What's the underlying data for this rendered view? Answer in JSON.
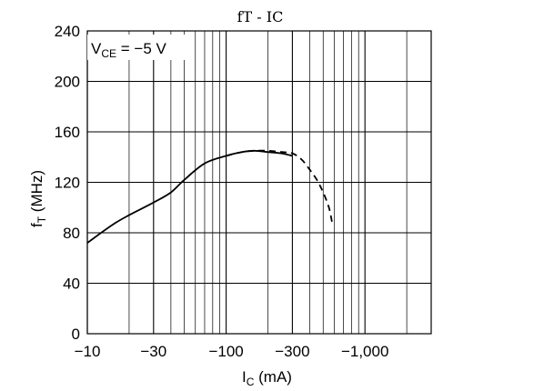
{
  "chart_data": {
    "type": "line",
    "title": "fT - IC",
    "annotation": "VCE = −5 V",
    "annotation_parts": {
      "main": "V",
      "sub": "CE",
      "rest": " = −5 V"
    },
    "xlabel_parts": {
      "main": "I",
      "sub": "C",
      "rest": "  (mA)"
    },
    "ylabel_parts": {
      "main": "f",
      "sub": "T",
      "rest": "  (MHz)"
    },
    "x_scale": "log",
    "xlim": [
      -10,
      -3000
    ],
    "ylim": [
      0,
      240
    ],
    "x_ticks": [
      {
        "value": 10,
        "label": "−10"
      },
      {
        "value": 30,
        "label": "−30"
      },
      {
        "value": 100,
        "label": "−100"
      },
      {
        "value": 300,
        "label": "−300"
      },
      {
        "value": 1000,
        "label": "−1,000"
      }
    ],
    "y_ticks": [
      {
        "value": 0,
        "label": "0"
      },
      {
        "value": 40,
        "label": "40"
      },
      {
        "value": 80,
        "label": "80"
      },
      {
        "value": 120,
        "label": "120"
      },
      {
        "value": 160,
        "label": "160"
      },
      {
        "value": 200,
        "label": "200"
      },
      {
        "value": 240,
        "label": "240"
      }
    ],
    "grid": true,
    "series": [
      {
        "style": "solid",
        "color": "#000000",
        "x": [
          -10,
          -15,
          -20,
          -30,
          -40,
          -50,
          -70,
          -100,
          -130,
          -160,
          -200,
          -250,
          -300
        ],
        "y": [
          72,
          86,
          94,
          104,
          112,
          122,
          135,
          141,
          144,
          145,
          144,
          143,
          141
        ]
      },
      {
        "style": "dashed",
        "color": "#000000",
        "x": [
          -100,
          -130,
          -160,
          -200,
          -250,
          -300,
          -350,
          -400,
          -450,
          -500,
          -550,
          -580
        ],
        "y": [
          141,
          144,
          145,
          145,
          144,
          143,
          138,
          130,
          122,
          112,
          100,
          88
        ]
      }
    ]
  }
}
